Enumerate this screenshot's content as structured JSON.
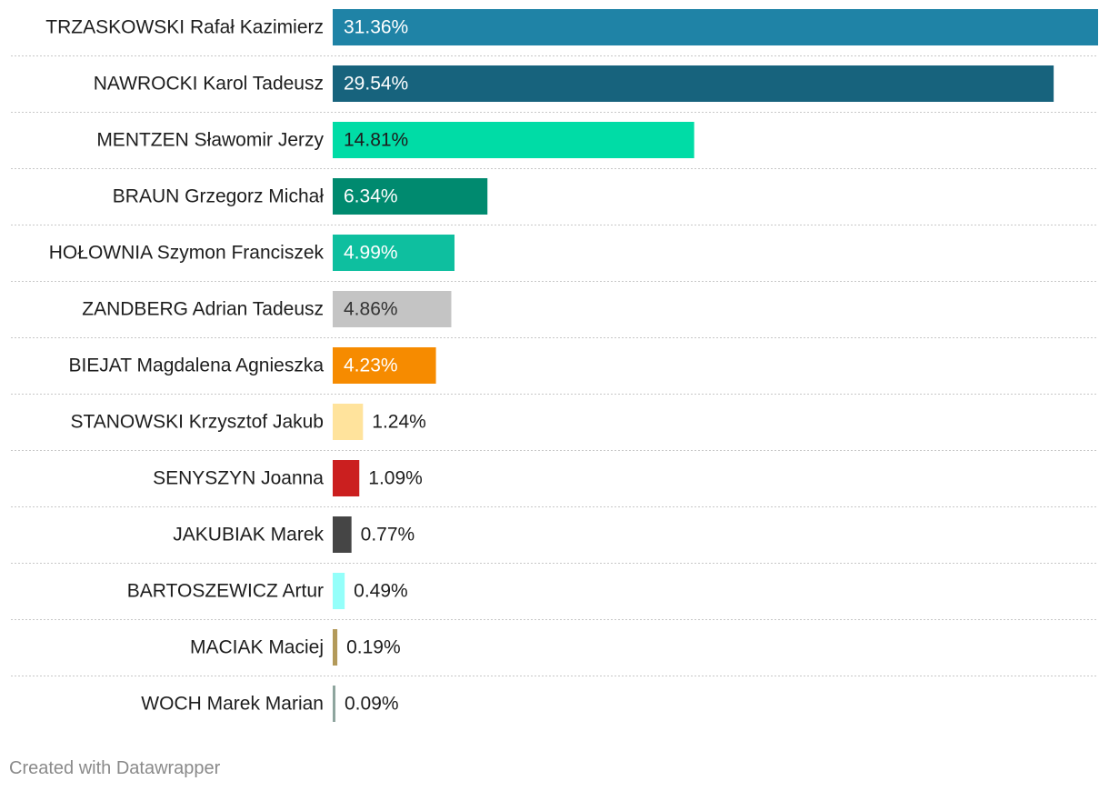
{
  "chart_data": {
    "type": "bar",
    "orientation": "horizontal",
    "categories": [
      "TRZASKOWSKI Rafał Kazimierz",
      "NAWROCKI Karol Tadeusz",
      "MENTZEN Sławomir Jerzy",
      "BRAUN Grzegorz Michał",
      "HOŁOWNIA Szymon Franciszek",
      "ZANDBERG Adrian Tadeusz",
      "BIEJAT Magdalena Agnieszka",
      "STANOWSKI Krzysztof Jakub",
      "SENYSZYN Joanna",
      "JAKUBIAK Marek",
      "BARTOSZEWICZ Artur",
      "MACIAK Maciej",
      "WOCH Marek Marian"
    ],
    "values": [
      31.36,
      29.54,
      14.81,
      6.34,
      4.99,
      4.86,
      4.23,
      1.24,
      1.09,
      0.77,
      0.49,
      0.19,
      0.09
    ],
    "value_labels": [
      "31.36%",
      "29.54%",
      "14.81%",
      "6.34%",
      "4.99%",
      "4.86%",
      "4.23%",
      "1.24%",
      "1.09%",
      "0.77%",
      "0.49%",
      "0.19%",
      "0.09%"
    ],
    "colors": [
      "#1f83a6",
      "#17637d",
      "#00dca6",
      "#008a6f",
      "#0ebf9f",
      "#c4c4c4",
      "#f68b00",
      "#ffe39c",
      "#cb1f1f",
      "#454545",
      "#94fffa",
      "#b39a5a",
      "#8ea59e"
    ],
    "label_text_colors": [
      "#ffffff",
      "#ffffff",
      "#1d1d1d",
      "#ffffff",
      "#ffffff",
      "#333333",
      "#ffffff",
      "#1d1d1d",
      "#1d1d1d",
      "#1d1d1d",
      "#1d1d1d",
      "#1d1d1d",
      "#1d1d1d"
    ],
    "label_inside": [
      true,
      true,
      true,
      true,
      true,
      true,
      true,
      false,
      false,
      false,
      false,
      false,
      false
    ],
    "xlim": [
      0,
      31.36
    ],
    "title": "",
    "xlabel": "",
    "ylabel": "",
    "grid": false,
    "legend": "none"
  },
  "footer": {
    "credit": "Created with Datawrapper"
  }
}
